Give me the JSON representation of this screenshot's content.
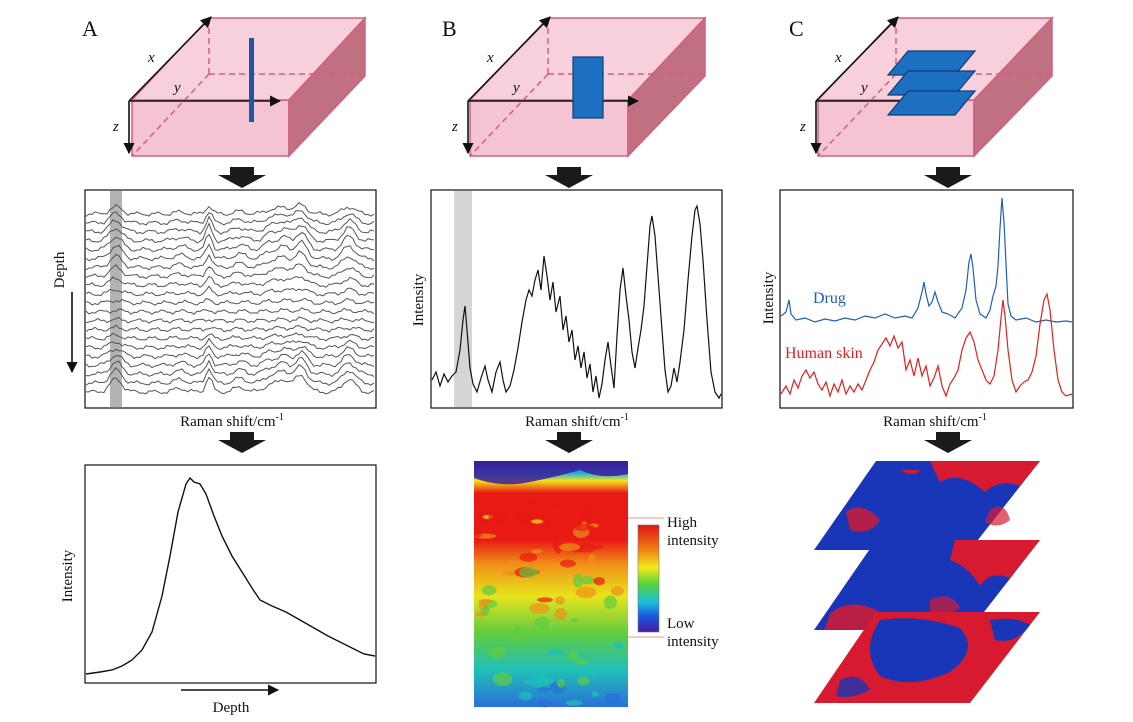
{
  "panels": {
    "a": {
      "label": "A",
      "axis_x": "x",
      "axis_y": "y",
      "axis_z": "z",
      "spectra_xlabel": "Raman shift/cm",
      "spectra_xlabel_sup": "-1",
      "spectra_ylabel": "Depth",
      "profile_ylabel": "Intensity",
      "profile_xlabel": "Depth"
    },
    "b": {
      "label": "B",
      "axis_x": "x",
      "axis_y": "y",
      "axis_z": "z",
      "spectrum_ylabel": "Intensity",
      "spectrum_xlabel": "Raman shift/cm",
      "spectrum_xlabel_sup": "-1",
      "colorbar_high": [
        "High",
        "intensity"
      ],
      "colorbar_low": [
        "Low",
        "intensity"
      ]
    },
    "c": {
      "label": "C",
      "axis_x": "x",
      "axis_y": "y",
      "axis_z": "z",
      "spectra_ylabel": "Intensity",
      "spectra_xlabel": "Raman shift/cm",
      "spectra_xlabel_sup": "-1",
      "series_drug": "Drug",
      "series_skin": "Human skin"
    }
  },
  "colors": {
    "skin_block": "#f4c4d2",
    "skin_edge": "#d0607e",
    "probe_blue": "#1d6fc0",
    "drug_line": "#1f5fb8",
    "skin_line": "#e02020"
  }
}
